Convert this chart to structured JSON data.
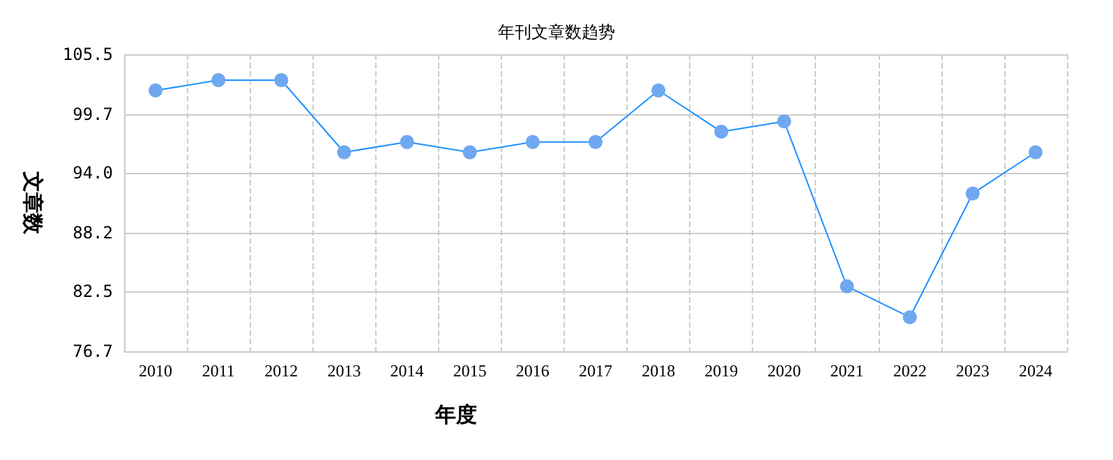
{
  "chart_data": {
    "type": "line",
    "title": "年刊文章数趋势",
    "xlabel": "年度",
    "ylabel": "文章数",
    "categories": [
      "2010",
      "2011",
      "2012",
      "2013",
      "2014",
      "2015",
      "2016",
      "2017",
      "2018",
      "2019",
      "2020",
      "2021",
      "2022",
      "2023",
      "2024"
    ],
    "series": [
      {
        "color": "#1e90ff",
        "values": [
          102,
          103,
          103,
          96,
          97,
          96,
          97,
          97,
          102,
          98,
          99,
          83,
          80,
          92,
          96
        ]
      }
    ],
    "ylim": [
      76.7,
      105.5
    ],
    "yticks": [
      {
        "value": 76.7,
        "label": "76.7"
      },
      {
        "value": 82.5,
        "label": "82.5"
      },
      {
        "value": 88.2,
        "label": "88.2"
      },
      {
        "value": 94.0,
        "label": "94.0"
      },
      {
        "value": 99.7,
        "label": "99.7"
      },
      {
        "value": 105.5,
        "label": "105.5"
      }
    ],
    "grid": true,
    "marker": "circle",
    "line_style": "solid"
  }
}
